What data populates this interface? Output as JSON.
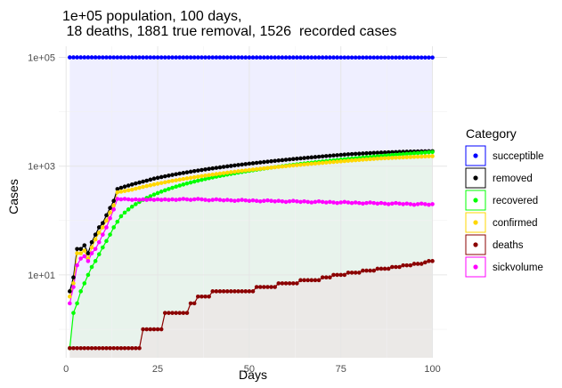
{
  "chart_data": {
    "type": "line",
    "title_line1": "1e+05 population, 100 days,",
    "title_line2": " 18 deaths, 1881 true removal, 1526  recorded cases",
    "xlabel": "Days",
    "ylabel": "Cases",
    "x_scale": "linear",
    "y_scale": "log10",
    "xlim": [
      -2,
      104
    ],
    "ylim": [
      0.3,
      160000
    ],
    "x_ticks": [
      0,
      25,
      50,
      75,
      100
    ],
    "x_tick_labels": [
      "0",
      "25",
      "50",
      "75",
      "100"
    ],
    "y_ticks": [
      10,
      1000,
      100000
    ],
    "y_tick_labels": [
      "1e+01",
      "1e+03",
      "1e+05"
    ],
    "grid": true,
    "legend_title": "Category",
    "legend_position": "right",
    "x": [
      1,
      2,
      3,
      4,
      5,
      6,
      7,
      8,
      9,
      10,
      11,
      12,
      13,
      14,
      15,
      16,
      17,
      18,
      19,
      20,
      21,
      22,
      23,
      24,
      25,
      26,
      27,
      28,
      29,
      30,
      31,
      32,
      33,
      34,
      35,
      36,
      37,
      38,
      39,
      40,
      41,
      42,
      43,
      44,
      45,
      46,
      47,
      48,
      49,
      50,
      51,
      52,
      53,
      54,
      55,
      56,
      57,
      58,
      59,
      60,
      61,
      62,
      63,
      64,
      65,
      66,
      67,
      68,
      69,
      70,
      71,
      72,
      73,
      74,
      75,
      76,
      77,
      78,
      79,
      80,
      81,
      82,
      83,
      84,
      85,
      86,
      87,
      88,
      89,
      90,
      91,
      92,
      93,
      94,
      95,
      96,
      97,
      98,
      99,
      100
    ],
    "series": [
      {
        "name": "succeptible",
        "color": "#0000ff",
        "area": true,
        "area_color": "#e9e9ff",
        "values": [
          99997,
          99995,
          99990,
          99984,
          99977,
          99970,
          99962,
          99954,
          99946,
          99938,
          99930,
          99922,
          99914,
          99906,
          99899,
          99892,
          99885,
          99878,
          99871,
          99864,
          99857,
          99850,
          99843,
          99836,
          99829,
          99822,
          99815,
          99808,
          99801,
          99794,
          99787,
          99780,
          99773,
          99766,
          99759,
          99752,
          99745,
          99738,
          99731,
          99724,
          99717,
          99710,
          99703,
          99696,
          99689,
          99682,
          99675,
          99668,
          99661,
          99654,
          99647,
          99640,
          99633,
          99626,
          99619,
          99612,
          99605,
          99598,
          99591,
          99584,
          99577,
          99570,
          99563,
          99556,
          99549,
          99542,
          99535,
          99528,
          99521,
          99514,
          99507,
          99500,
          99493,
          99486,
          99479,
          99472,
          99465,
          99458,
          99451,
          99444,
          99437,
          99430,
          99423,
          99416,
          99409,
          99402,
          99395,
          99388,
          99381,
          99374,
          99367,
          99360,
          99353,
          99346,
          99339,
          99332,
          99325,
          99318,
          99311,
          99304
        ]
      },
      {
        "name": "removed",
        "color": "#000000",
        "values": [
          5,
          9,
          30,
          30,
          35,
          25,
          40,
          55,
          75,
          90,
          125,
          170,
          230,
          380,
          400,
          420,
          440,
          460,
          480,
          500,
          520,
          540,
          565,
          590,
          610,
          630,
          650,
          670,
          690,
          710,
          730,
          750,
          770,
          790,
          810,
          830,
          850,
          870,
          890,
          910,
          930,
          950,
          970,
          990,
          1010,
          1030,
          1050,
          1070,
          1090,
          1110,
          1130,
          1150,
          1170,
          1190,
          1210,
          1230,
          1250,
          1270,
          1290,
          1310,
          1330,
          1350,
          1370,
          1390,
          1410,
          1430,
          1450,
          1470,
          1490,
          1510,
          1530,
          1550,
          1570,
          1590,
          1610,
          1630,
          1650,
          1665,
          1680,
          1695,
          1710,
          1725,
          1740,
          1755,
          1765,
          1775,
          1785,
          1795,
          1805,
          1815,
          1825,
          1835,
          1845,
          1852,
          1859,
          1865,
          1870,
          1875,
          1878,
          1881
        ]
      },
      {
        "name": "recovered",
        "color": "#00ff00",
        "area": true,
        "area_color": "#e6f4e6",
        "values": [
          0.45,
          2,
          3,
          5,
          7,
          10,
          14,
          18,
          24,
          32,
          42,
          55,
          75,
          95,
          120,
          140,
          160,
          180,
          200,
          220,
          240,
          260,
          280,
          300,
          320,
          340,
          360,
          380,
          400,
          420,
          440,
          460,
          480,
          500,
          520,
          540,
          560,
          580,
          600,
          620,
          640,
          660,
          680,
          700,
          720,
          740,
          760,
          780,
          800,
          820,
          840,
          860,
          880,
          900,
          920,
          940,
          960,
          980,
          1000,
          1020,
          1040,
          1060,
          1080,
          1100,
          1120,
          1140,
          1160,
          1180,
          1200,
          1220,
          1240,
          1260,
          1280,
          1300,
          1320,
          1340,
          1360,
          1380,
          1400,
          1420,
          1440,
          1460,
          1480,
          1500,
          1520,
          1540,
          1560,
          1580,
          1600,
          1620,
          1640,
          1660,
          1680,
          1700,
          1720,
          1740,
          1760,
          1780,
          1800,
          1820
        ]
      },
      {
        "name": "confirmed",
        "color": "#ffd700",
        "values": [
          4,
          7,
          25,
          25,
          28,
          20,
          32,
          45,
          60,
          75,
          100,
          140,
          190,
          330,
          340,
          350,
          360,
          370,
          385,
          400,
          415,
          430,
          445,
          460,
          475,
          490,
          505,
          520,
          535,
          550,
          565,
          580,
          595,
          610,
          625,
          640,
          655,
          670,
          685,
          700,
          715,
          730,
          745,
          760,
          775,
          790,
          805,
          820,
          835,
          850,
          865,
          880,
          895,
          910,
          925,
          940,
          955,
          970,
          985,
          1000,
          1015,
          1030,
          1045,
          1060,
          1075,
          1090,
          1105,
          1120,
          1135,
          1150,
          1165,
          1180,
          1195,
          1210,
          1225,
          1240,
          1255,
          1270,
          1285,
          1300,
          1315,
          1330,
          1345,
          1360,
          1375,
          1390,
          1400,
          1410,
          1420,
          1430,
          1440,
          1450,
          1460,
          1470,
          1480,
          1490,
          1500,
          1510,
          1518,
          1526
        ]
      },
      {
        "name": "deaths",
        "color": "#8b0000",
        "area": true,
        "area_color": "#ece6e6",
        "values": [
          0.45,
          0.45,
          0.45,
          0.45,
          0.45,
          0.45,
          0.45,
          0.45,
          0.45,
          0.45,
          0.45,
          0.45,
          0.45,
          0.45,
          0.45,
          0.45,
          0.45,
          0.45,
          0.45,
          0.45,
          1,
          1,
          1,
          1,
          1,
          1,
          2,
          2,
          2,
          2,
          2,
          2,
          2,
          3,
          3,
          4,
          4,
          4,
          4,
          5,
          5,
          5,
          5,
          5,
          5,
          5,
          5,
          5,
          5,
          5,
          5,
          6,
          6,
          6,
          6,
          6,
          6,
          7,
          7,
          7,
          7,
          7,
          7,
          8,
          8,
          8,
          8,
          8,
          8,
          9,
          9,
          9,
          10,
          10,
          10,
          10,
          11,
          11,
          11,
          11,
          12,
          12,
          12,
          12,
          13,
          13,
          13,
          13,
          14,
          14,
          14,
          15,
          15,
          15,
          16,
          16,
          16,
          17,
          18,
          18
        ]
      },
      {
        "name": "sickvolume",
        "color": "#ff00ff",
        "values": [
          3,
          6,
          15,
          20,
          22,
          18,
          25,
          30,
          40,
          55,
          75,
          110,
          160,
          250,
          245,
          250,
          245,
          240,
          245,
          240,
          245,
          240,
          245,
          240,
          245,
          240,
          245,
          240,
          245,
          240,
          245,
          250,
          245,
          240,
          245,
          250,
          245,
          240,
          235,
          240,
          245,
          240,
          235,
          240,
          235,
          230,
          235,
          240,
          235,
          230,
          235,
          230,
          225,
          230,
          235,
          230,
          225,
          230,
          225,
          220,
          225,
          230,
          225,
          220,
          225,
          220,
          215,
          220,
          225,
          220,
          215,
          220,
          215,
          210,
          215,
          220,
          215,
          210,
          215,
          210,
          205,
          210,
          215,
          210,
          205,
          210,
          205,
          200,
          205,
          210,
          205,
          200,
          205,
          200,
          195,
          200,
          205,
          200,
          195,
          200
        ]
      }
    ]
  }
}
